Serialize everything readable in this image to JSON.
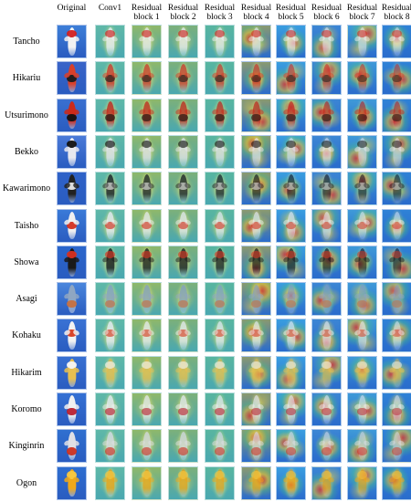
{
  "columns": [
    {
      "label": "Original"
    },
    {
      "label": "Conv1"
    },
    {
      "label": "Residual\nblock 1"
    },
    {
      "label": "Residual\nblock 2"
    },
    {
      "label": "Residual\nblock 3"
    },
    {
      "label": "Residual\nblock 4"
    },
    {
      "label": "Residual\nblock 5"
    },
    {
      "label": "Residual\nblock 6"
    },
    {
      "label": "Residual\nblock 7"
    },
    {
      "label": "Residual\nblock 8"
    }
  ],
  "rows": [
    {
      "label": "Tancho",
      "fish_color": "#f2f2f2",
      "accent": "#d22020",
      "bg": "#3d7fd8"
    },
    {
      "label": "Hikariu",
      "fish_color": "#d8402a",
      "accent": "#1a1a1a",
      "bg": "#3a64c8"
    },
    {
      "label": "Utsurimono",
      "fish_color": "#cc2a1a",
      "accent": "#111111",
      "bg": "#3a70d0"
    },
    {
      "label": "Bekko",
      "fish_color": "#e8e8ee",
      "accent": "#111111",
      "bg": "#4a7ad8"
    },
    {
      "label": "Kawarimono",
      "fish_color": "#222222",
      "accent": "#e8e8e8",
      "bg": "#2f62c8"
    },
    {
      "label": "Taisho",
      "fish_color": "#f0f0f0",
      "accent": "#d23020",
      "bg": "#3a7ad8"
    },
    {
      "label": "Showa",
      "fish_color": "#1a1a1a",
      "accent": "#d83020",
      "bg": "#2a66cc"
    },
    {
      "label": "Asagi",
      "fish_color": "#8fa6c2",
      "accent": "#c87040",
      "bg": "#4a86dc"
    },
    {
      "label": "Kohaku",
      "fish_color": "#f2f2f2",
      "accent": "#d63a20",
      "bg": "#3a72d4"
    },
    {
      "label": "Hikarim",
      "fish_color": "#e8c050",
      "accent": "#f5f5f5",
      "bg": "#3870d2"
    },
    {
      "label": "Koromo",
      "fish_color": "#f0f0f0",
      "accent": "#b82030",
      "bg": "#3470d4"
    },
    {
      "label": "Kinginrin",
      "fish_color": "#e0e0e4",
      "accent": "#cc3020",
      "bg": "#3070d0"
    },
    {
      "label": "Ogon",
      "fish_color": "#f0a818",
      "accent": "#f8c840",
      "bg": "#2e6ed0"
    }
  ]
}
